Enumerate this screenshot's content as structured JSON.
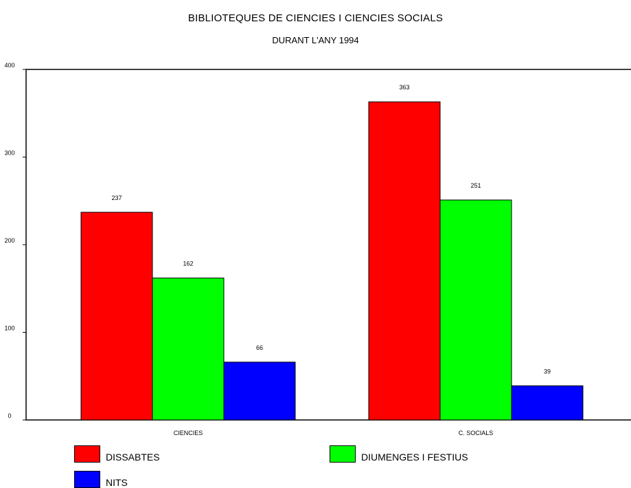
{
  "chart_data": {
    "type": "bar",
    "title": "BIBLIOTEQUES DE CIENCIES I CIENCIES SOCIALS",
    "subtitle": "DURANT L'ANY 1994",
    "categories": [
      "CIENCIES",
      "C. SOCIALS"
    ],
    "series": [
      {
        "name": "DISSABTES",
        "color": "#ff0000",
        "values": [
          237,
          363
        ]
      },
      {
        "name": "DIUMENGES I FESTIUS",
        "color": "#00ff00",
        "values": [
          162,
          251
        ]
      },
      {
        "name": "NITS",
        "color": "#0000ff",
        "values": [
          66,
          39
        ]
      }
    ],
    "ylim": [
      0,
      400
    ],
    "yticks": [
      0,
      100,
      200,
      300,
      400
    ],
    "xlabel": "",
    "ylabel": "",
    "grid": false,
    "legend_position": "bottom",
    "data_labels": true
  }
}
